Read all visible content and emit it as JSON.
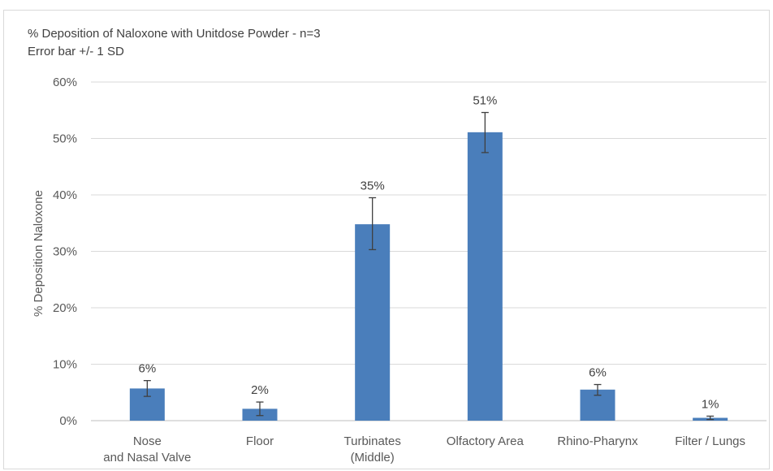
{
  "chart_data": {
    "type": "bar",
    "title": "% Deposition of Naloxone with Unitdose Powder - n=3",
    "subtitle": "Error bar +/- 1 SD",
    "xlabel": "",
    "ylabel": "% Deposition Naloxone",
    "ylim": [
      0,
      60
    ],
    "yticks": [
      0,
      10,
      20,
      30,
      40,
      50,
      60
    ],
    "ytick_labels": [
      "0%",
      "10%",
      "20%",
      "30%",
      "40%",
      "50%",
      "60%"
    ],
    "grid": true,
    "legend": "none",
    "bar_color": "#4a7ebb",
    "categories": [
      [
        "Nose",
        "and Nasal Valve"
      ],
      [
        "Floor"
      ],
      [
        "Turbinates",
        "(Middle)"
      ],
      [
        "Olfactory Area"
      ],
      [
        "Rhino-Pharynx"
      ],
      [
        "Filter / Lungs"
      ]
    ],
    "values": [
      5.7,
      2.1,
      34.8,
      51.1,
      5.5,
      0.5
    ],
    "error_minus": [
      1.4,
      1.2,
      4.5,
      3.6,
      1.0,
      0.3
    ],
    "error_plus": [
      1.4,
      1.2,
      4.7,
      3.5,
      0.9,
      0.3
    ],
    "data_labels": [
      "6%",
      "2%",
      "35%",
      "51%",
      "6%",
      "1%"
    ]
  }
}
